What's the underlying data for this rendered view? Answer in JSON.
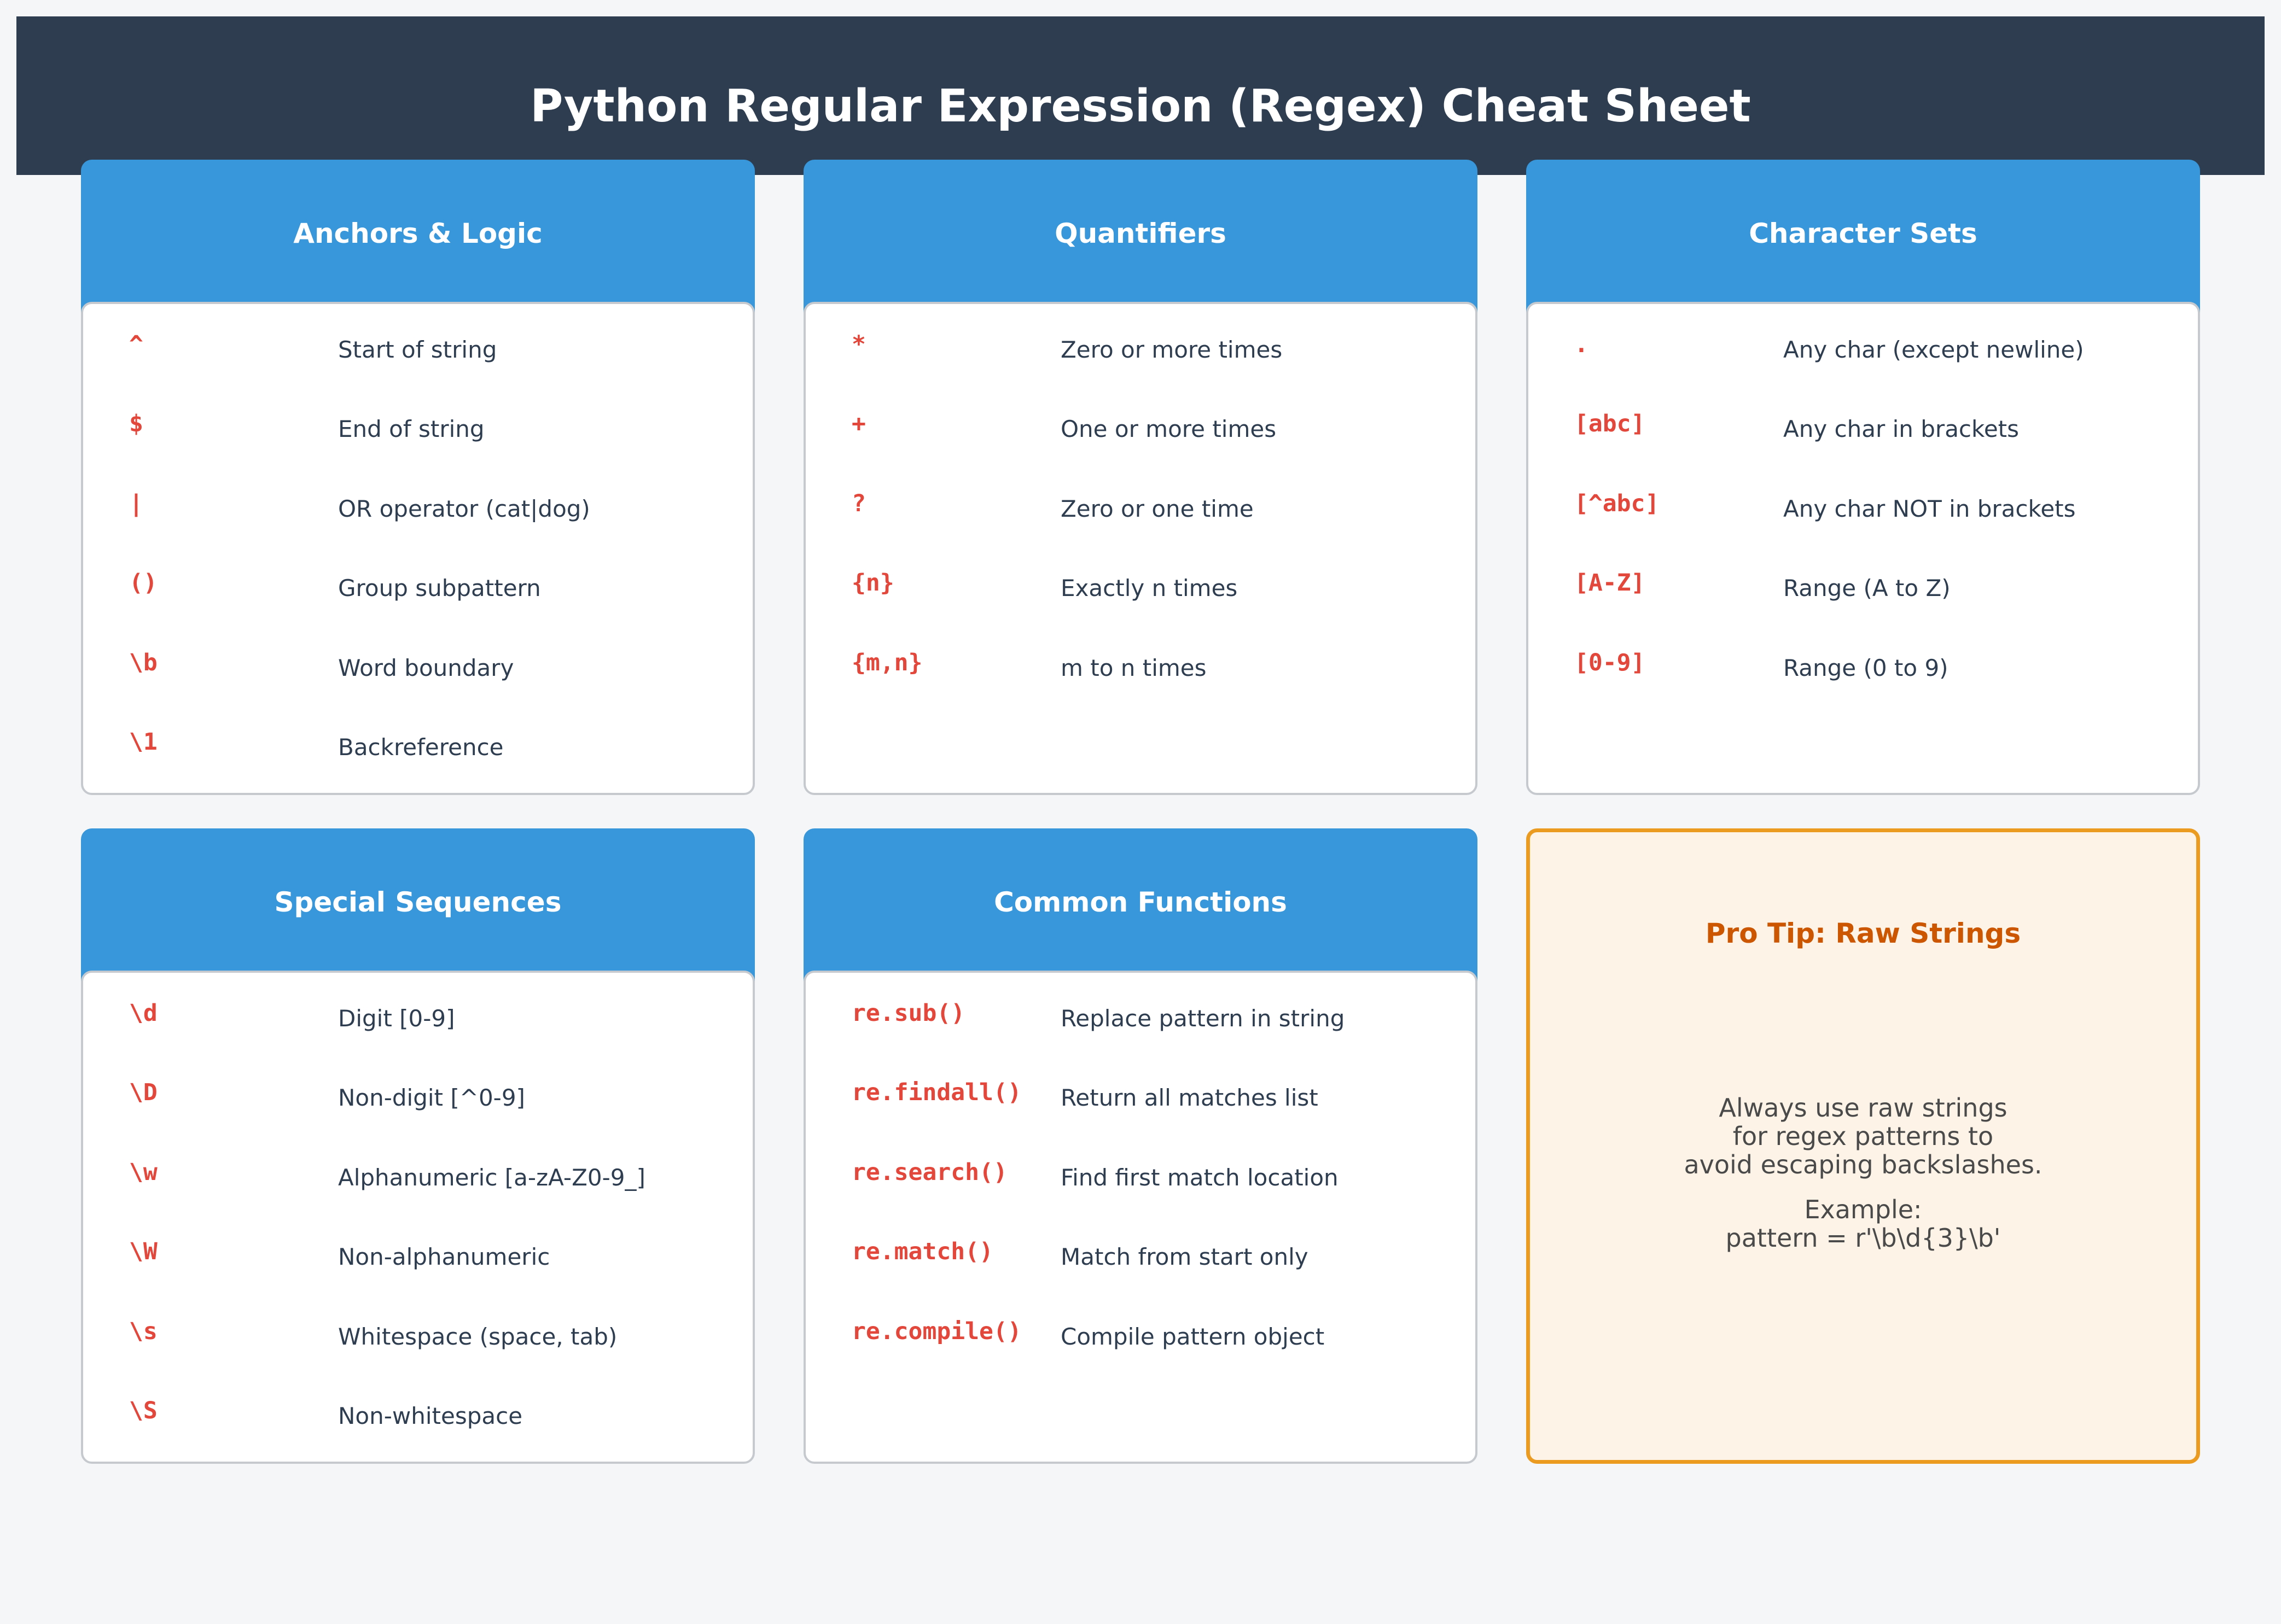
{
  "page": {
    "title": "Python Regular Expression (Regex) Cheat Sheet"
  },
  "cards": [
    {
      "title": "Anchors & Logic",
      "rows": [
        {
          "code": "^",
          "desc": "Start of string"
        },
        {
          "code": "$",
          "desc": "End of string"
        },
        {
          "code": "|",
          "desc": "OR operator (cat|dog)"
        },
        {
          "code": "()",
          "desc": "Group subpattern"
        },
        {
          "code": "\\b",
          "desc": "Word boundary"
        },
        {
          "code": "\\1",
          "desc": "Backreference"
        }
      ]
    },
    {
      "title": "Quantifiers",
      "rows": [
        {
          "code": "*",
          "desc": "Zero or more times"
        },
        {
          "code": "+",
          "desc": "One or more times"
        },
        {
          "code": "?",
          "desc": "Zero or one time"
        },
        {
          "code": "{n}",
          "desc": "Exactly n times"
        },
        {
          "code": "{m,n}",
          "desc": "m to n times"
        }
      ]
    },
    {
      "title": "Character Sets",
      "rows": [
        {
          "code": ".",
          "desc": "Any char (except newline)"
        },
        {
          "code": "[abc]",
          "desc": "Any char in brackets"
        },
        {
          "code": "[^abc]",
          "desc": "Any char NOT in brackets"
        },
        {
          "code": "[A-Z]",
          "desc": "Range (A to Z)"
        },
        {
          "code": "[0-9]",
          "desc": "Range (0 to 9)"
        }
      ]
    },
    {
      "title": "Special Sequences",
      "rows": [
        {
          "code": "\\d",
          "desc": "Digit [0-9]"
        },
        {
          "code": "\\D",
          "desc": "Non-digit [^0-9]"
        },
        {
          "code": "\\w",
          "desc": "Alphanumeric [a-zA-Z0-9_]"
        },
        {
          "code": "\\W",
          "desc": "Non-alphanumeric"
        },
        {
          "code": "\\s",
          "desc": "Whitespace (space, tab)"
        },
        {
          "code": "\\S",
          "desc": "Non-whitespace"
        }
      ]
    },
    {
      "title": "Common Functions",
      "rows": [
        {
          "code": "re.sub()",
          "desc": "Replace pattern in string"
        },
        {
          "code": "re.findall()",
          "desc": "Return all matches list"
        },
        {
          "code": "re.search()",
          "desc": "Find first match location"
        },
        {
          "code": "re.match()",
          "desc": "Match from start only"
        },
        {
          "code": "re.compile()",
          "desc": "Compile pattern object"
        }
      ]
    }
  ],
  "tip": {
    "title": "Pro Tip: Raw Strings",
    "lines": [
      "Always use raw strings",
      "for regex patterns to",
      "avoid escaping backslashes.",
      "",
      "Example:",
      "pattern = r'\\b\\d{3}\\b'"
    ]
  },
  "colors": {
    "header_bg": "#2e3d50",
    "card_header_bg": "#3797da",
    "code_text": "#e3473b",
    "desc_text": "#2e3d50",
    "tip_bg": "#fdf3e6",
    "tip_border": "#eb9b20",
    "tip_title": "#cc5500"
  }
}
